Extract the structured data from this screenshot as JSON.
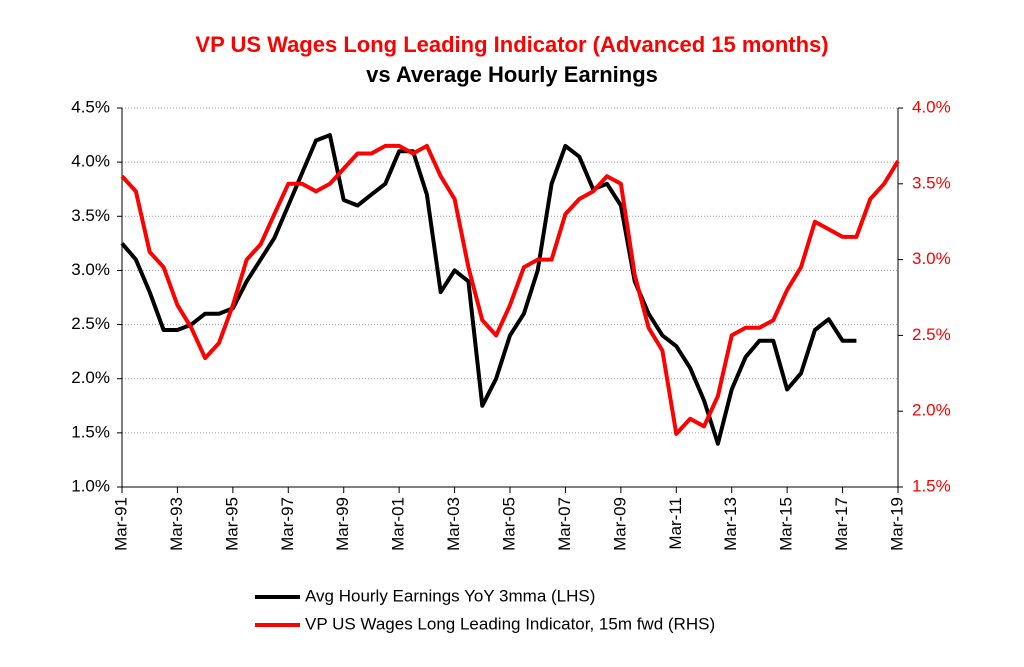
{
  "chart_data": {
    "type": "line",
    "title": "VP US Wages Long Leading Indicator (Advanced 15 months)",
    "subtitle": "vs Average Hourly Earnings",
    "x": [
      "Mar-91",
      "Sep-91",
      "Mar-92",
      "Sep-92",
      "Mar-93",
      "Sep-93",
      "Mar-94",
      "Sep-94",
      "Mar-95",
      "Sep-95",
      "Mar-96",
      "Sep-96",
      "Mar-97",
      "Sep-97",
      "Mar-98",
      "Sep-98",
      "Mar-99",
      "Sep-99",
      "Mar-00",
      "Sep-00",
      "Mar-01",
      "Sep-01",
      "Mar-02",
      "Sep-02",
      "Mar-03",
      "Sep-03",
      "Mar-04",
      "Sep-04",
      "Mar-05",
      "Sep-05",
      "Mar-06",
      "Sep-06",
      "Mar-07",
      "Sep-07",
      "Mar-08",
      "Sep-08",
      "Mar-09",
      "Sep-09",
      "Mar-10",
      "Sep-10",
      "Mar-11",
      "Sep-11",
      "Mar-12",
      "Sep-12",
      "Mar-13",
      "Sep-13",
      "Mar-14",
      "Sep-14",
      "Mar-15",
      "Sep-15",
      "Mar-16",
      "Sep-16",
      "Mar-17",
      "Sep-17",
      "Mar-18",
      "Sep-18",
      "Mar-19"
    ],
    "series": [
      {
        "name": "Avg Hourly Earnings YoY 3mma (LHS)",
        "color": "#000000",
        "axis": "y",
        "values": [
          3.25,
          3.1,
          2.8,
          2.45,
          2.45,
          2.5,
          2.6,
          2.6,
          2.65,
          2.9,
          3.1,
          3.3,
          3.6,
          3.9,
          4.2,
          4.25,
          3.65,
          3.6,
          3.7,
          3.8,
          4.1,
          4.1,
          3.7,
          2.8,
          3.0,
          2.9,
          1.75,
          2.0,
          2.4,
          2.6,
          3.0,
          3.8,
          4.15,
          4.05,
          3.75,
          3.8,
          3.6,
          2.9,
          2.6,
          2.4,
          2.3,
          2.1,
          1.8,
          1.4,
          1.9,
          2.2,
          2.35,
          2.35,
          1.9,
          2.05,
          2.45,
          2.55,
          2.35,
          2.35,
          null,
          null,
          null
        ]
      },
      {
        "name": "VP US Wages Long Leading Indicator, 15m fwd (RHS)",
        "color": "#ff0000",
        "axis": "y2",
        "values": [
          3.55,
          3.45,
          3.05,
          2.95,
          2.7,
          2.55,
          2.35,
          2.45,
          2.7,
          3.0,
          3.1,
          3.3,
          3.5,
          3.5,
          3.45,
          3.5,
          3.6,
          3.7,
          3.7,
          3.75,
          3.75,
          3.7,
          3.75,
          3.55,
          3.4,
          2.95,
          2.6,
          2.5,
          2.7,
          2.95,
          3.0,
          3.0,
          3.3,
          3.4,
          3.45,
          3.55,
          3.5,
          2.9,
          2.55,
          2.4,
          1.85,
          1.95,
          1.9,
          2.1,
          2.5,
          2.55,
          2.55,
          2.6,
          2.8,
          2.95,
          3.25,
          3.2,
          3.15,
          3.15,
          3.4,
          3.5,
          3.65
        ]
      }
    ],
    "xlim": [
      "Mar-91",
      "Mar-19"
    ],
    "xticks": [
      "Mar-91",
      "Mar-93",
      "Mar-95",
      "Mar-97",
      "Mar-99",
      "Mar-01",
      "Mar-03",
      "Mar-05",
      "Mar-07",
      "Mar-09",
      "Mar-11",
      "Mar-13",
      "Mar-15",
      "Mar-17",
      "Mar-19"
    ],
    "ylim": [
      1.0,
      4.5
    ],
    "yticks": [
      {
        "value": 1.0,
        "label": "1.0%"
      },
      {
        "value": 1.5,
        "label": "1.5%"
      },
      {
        "value": 2.0,
        "label": "2.0%"
      },
      {
        "value": 2.5,
        "label": "2.5%"
      },
      {
        "value": 3.0,
        "label": "3.0%"
      },
      {
        "value": 3.5,
        "label": "3.5%"
      },
      {
        "value": 4.0,
        "label": "4.0%"
      },
      {
        "value": 4.5,
        "label": "4.5%"
      }
    ],
    "y2lim": [
      1.5,
      4.0
    ],
    "y2ticks": [
      {
        "value": 1.5,
        "label": "1.5%"
      },
      {
        "value": 2.0,
        "label": "2.0%"
      },
      {
        "value": 2.5,
        "label": "2.5%"
      },
      {
        "value": 3.0,
        "label": "3.0%"
      },
      {
        "value": 3.5,
        "label": "3.5%"
      },
      {
        "value": 4.0,
        "label": "4.0%"
      }
    ],
    "y2color": "#ff0000",
    "grid": true,
    "legend": "bottom"
  }
}
